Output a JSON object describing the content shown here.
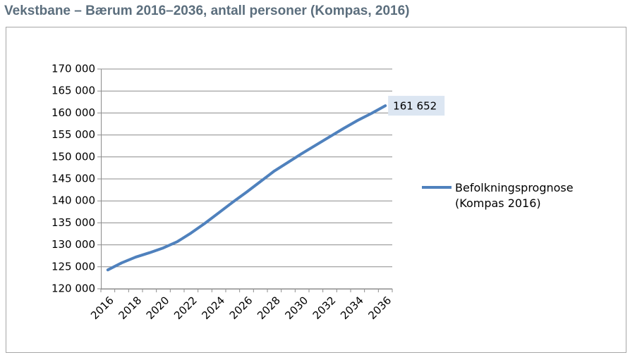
{
  "chart_data": {
    "type": "line",
    "title": "Vekstbane – Bærum 2016–2036, antall personer (Kompas, 2016)",
    "categories": [
      "2016",
      null,
      "2018",
      null,
      "2020",
      null,
      "2022",
      null,
      "2024",
      null,
      "2026",
      null,
      "2028",
      null,
      "2030",
      null,
      "2032",
      null,
      "2034",
      null,
      "2036"
    ],
    "series": [
      {
        "name": "Befolkningsprognose (Kompas 2016)",
        "color": "#4f81bd",
        "values": [
          124300,
          125900,
          127200,
          128200,
          129300,
          130700,
          132700,
          134900,
          137300,
          139700,
          142000,
          144400,
          146800,
          148800,
          150800,
          152700,
          154600,
          156500,
          158300,
          159900,
          161652
        ],
        "value_labels": [
          null,
          null,
          null,
          null,
          null,
          null,
          null,
          null,
          null,
          null,
          null,
          null,
          null,
          null,
          null,
          null,
          null,
          null,
          null,
          null,
          "161 652"
        ]
      }
    ],
    "ylim": [
      120000,
      170000
    ],
    "yticks": [
      {
        "value": 120000,
        "label": "120 000"
      },
      {
        "value": 125000,
        "label": "125 000"
      },
      {
        "value": 130000,
        "label": "130 000"
      },
      {
        "value": 135000,
        "label": "135 000"
      },
      {
        "value": 140000,
        "label": "140 000"
      },
      {
        "value": 145000,
        "label": "145 000"
      },
      {
        "value": 150000,
        "label": "150 000"
      },
      {
        "value": 155000,
        "label": "155 000"
      },
      {
        "value": 160000,
        "label": "160 000"
      },
      {
        "value": 165000,
        "label": "165 000"
      },
      {
        "value": 170000,
        "label": "170 000"
      }
    ],
    "grid": true,
    "legend": "right"
  }
}
